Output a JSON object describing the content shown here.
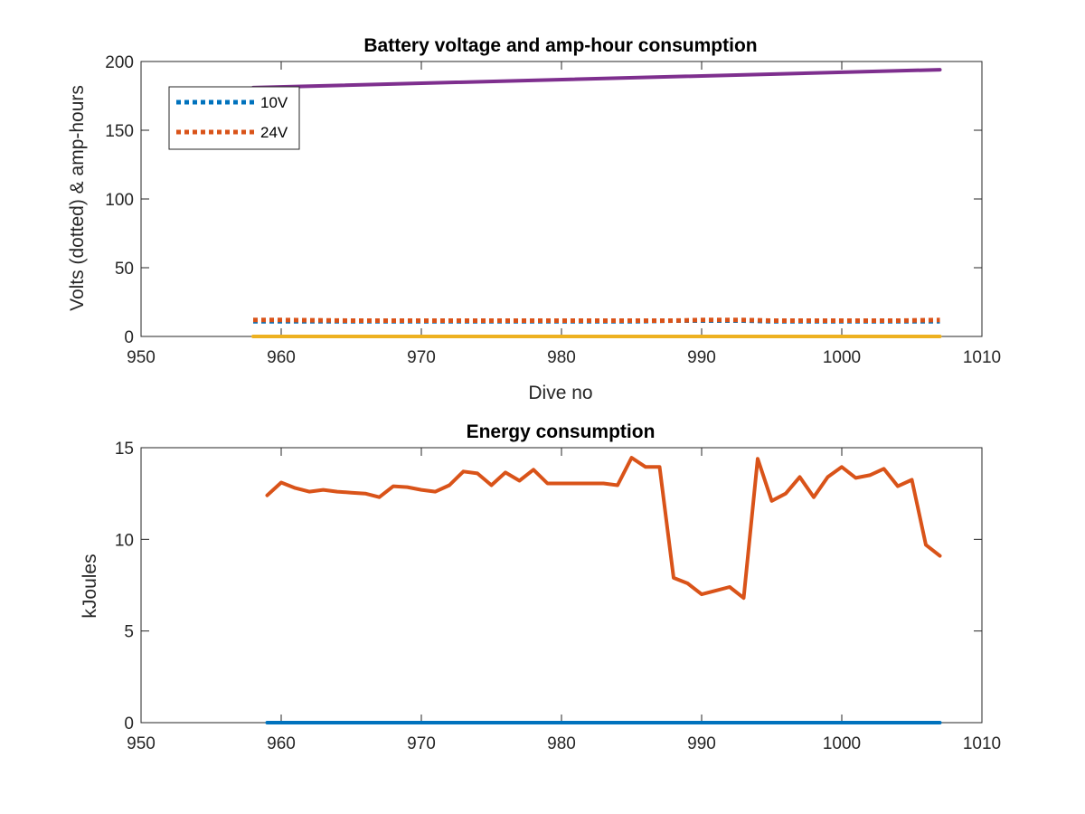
{
  "chart_data": [
    {
      "type": "line",
      "title": "Battery voltage and amp-hour consumption",
      "xlabel": "Dive no",
      "ylabel": "Volts (dotted) & amp-hours",
      "xlim": [
        950,
        1010
      ],
      "ylim": [
        0,
        200
      ],
      "xticks": [
        950,
        960,
        970,
        980,
        990,
        1000,
        1010
      ],
      "yticks": [
        0,
        50,
        100,
        150,
        200
      ],
      "box": true,
      "grid": false,
      "legend": {
        "position": "top-left",
        "entries": [
          "10V",
          "24V"
        ]
      },
      "series": [
        {
          "name": "10V",
          "style": "dotted",
          "color": "#0072BD",
          "x": [
            958,
            960,
            965,
            970,
            975,
            980,
            985,
            988,
            990,
            993,
            995,
            1000,
            1004,
            1007
          ],
          "y": [
            11,
            11,
            11,
            11,
            11,
            11,
            11,
            11.5,
            11.5,
            11.5,
            11,
            11,
            11,
            11
          ]
        },
        {
          "name": "24V",
          "style": "dotted",
          "color": "#D95319",
          "x": [
            958,
            960,
            965,
            970,
            975,
            980,
            985,
            988,
            990,
            993,
            995,
            1000,
            1004,
            1007
          ],
          "y": [
            12,
            12,
            11.5,
            11.5,
            11.5,
            11.5,
            11.5,
            11.5,
            12,
            12,
            11.5,
            11.5,
            11.5,
            12
          ]
        },
        {
          "style": "solid",
          "color": "#EDB120",
          "x": [
            958,
            1007
          ],
          "y": [
            0,
            0
          ]
        },
        {
          "style": "solid",
          "color": "#7E2F8E",
          "x": [
            958,
            1007
          ],
          "y": [
            181,
            194
          ]
        }
      ]
    },
    {
      "type": "line",
      "title": "Energy consumption",
      "xlabel": "",
      "ylabel": "kJoules",
      "xlim": [
        950,
        1010
      ],
      "ylim": [
        0,
        15
      ],
      "xticks": [
        950,
        960,
        970,
        980,
        990,
        1000,
        1010
      ],
      "yticks": [
        0,
        5,
        10,
        15
      ],
      "box": true,
      "grid": false,
      "series": [
        {
          "style": "solid",
          "color": "#0072BD",
          "x": [
            959,
            1007
          ],
          "y": [
            0,
            0
          ]
        },
        {
          "style": "solid",
          "color": "#D95319",
          "x": [
            959,
            960,
            961,
            962,
            963,
            964,
            965,
            966,
            967,
            968,
            969,
            970,
            971,
            972,
            973,
            974,
            975,
            976,
            977,
            978,
            979,
            980,
            981,
            982,
            983,
            984,
            985,
            986,
            987,
            988,
            989,
            990,
            991,
            992,
            993,
            994,
            995,
            996,
            997,
            998,
            999,
            1000,
            1001,
            1002,
            1003,
            1004,
            1005,
            1006,
            1007
          ],
          "y": [
            12.4,
            13.1,
            12.8,
            12.6,
            12.7,
            12.6,
            12.55,
            12.5,
            12.3,
            12.9,
            12.85,
            12.7,
            12.6,
            12.95,
            13.7,
            13.6,
            12.95,
            13.65,
            13.2,
            13.8,
            13.05,
            13.05,
            13.05,
            13.05,
            13.05,
            12.95,
            14.45,
            13.95,
            13.95,
            7.9,
            7.6,
            7.0,
            7.2,
            7.4,
            6.8,
            14.4,
            12.1,
            12.5,
            13.4,
            12.3,
            13.4,
            13.95,
            13.35,
            13.5,
            13.85,
            12.9,
            13.25,
            9.7,
            9.1
          ]
        }
      ]
    }
  ]
}
